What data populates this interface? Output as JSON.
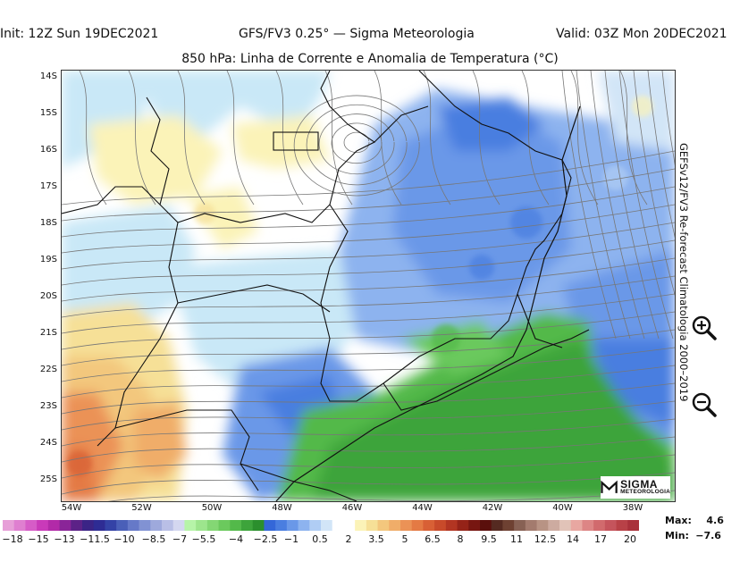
{
  "header": {
    "init": "Init: 12Z Sun 19DEC2021",
    "model": "GFS/FV3 0.25° — Sigma Meteorologia",
    "valid": "Valid: 03Z Mon 20DEC2021",
    "subtitle": "850 hPa: Linha de Corrente e Anomalia de Temperatura (°C)"
  },
  "side_label": "GEFSv12/FV3 Re-forecast Climatologia 2000–2019",
  "lat_labels": [
    "14S",
    "15S",
    "16S",
    "17S",
    "18S",
    "19S",
    "20S",
    "21S",
    "22S",
    "23S",
    "24S",
    "25S"
  ],
  "lon_labels": [
    "54W",
    "52W",
    "50W",
    "48W",
    "46W",
    "44W",
    "42W",
    "40W",
    "38W"
  ],
  "colorbar": {
    "labels": [
      "−18",
      "−15",
      "−13",
      "−11.5",
      "−10",
      "−8.5",
      "−7",
      "−5.5",
      "−4",
      "−2.5",
      "−1",
      "0.5",
      "2",
      "3.5",
      "5",
      "6.5",
      "8",
      "9.5",
      "11",
      "12.5",
      "14",
      "17",
      "20"
    ],
    "colors": [
      "#e79fd8",
      "#df7fd0",
      "#d65cc7",
      "#c93ab9",
      "#b22aa8",
      "#8a2598",
      "#5c2287",
      "#3b2486",
      "#2e2c94",
      "#3442a6",
      "#4a5fb8",
      "#6679c8",
      "#8192d3",
      "#9ea9dc",
      "#b9bfe6",
      "#d4d7f0",
      "#b6f4a8",
      "#9de58d",
      "#84d774",
      "#6bc95d",
      "#53b94a",
      "#3da43b",
      "#2b8f2d",
      "#3467d8",
      "#4a7ee0",
      "#6a98e8",
      "#8db3ef",
      "#b0cdf4",
      "#d2e5f7",
      "#ffffff",
      "#ffffff",
      "#fbf3b8",
      "#f6e097",
      "#f3c77d",
      "#f0ad69",
      "#eb9256",
      "#e47a44",
      "#d86035",
      "#c84a2a",
      "#b23522",
      "#952318",
      "#771611",
      "#5a0f0c",
      "#552a21",
      "#6e4132",
      "#876154",
      "#a37b6e",
      "#b89384",
      "#cdaba0",
      "#e1c3b8",
      "#e8a7a1",
      "#dd8585",
      "#d16a6d",
      "#c5545c",
      "#b84147",
      "#a9313a"
    ]
  },
  "stats": {
    "max_label": "Max:",
    "max_value": "4.6",
    "min_label": "Min:",
    "min_value": "−7.6"
  },
  "logo": {
    "main": "SIGMA",
    "sub": "METEOROLOGIA"
  },
  "controls": {
    "zoom_in": "zoom-in",
    "zoom_out": "zoom-out"
  },
  "icons": [
    "zoom-in-icon",
    "zoom-out-icon",
    "sigma-logo-icon"
  ]
}
